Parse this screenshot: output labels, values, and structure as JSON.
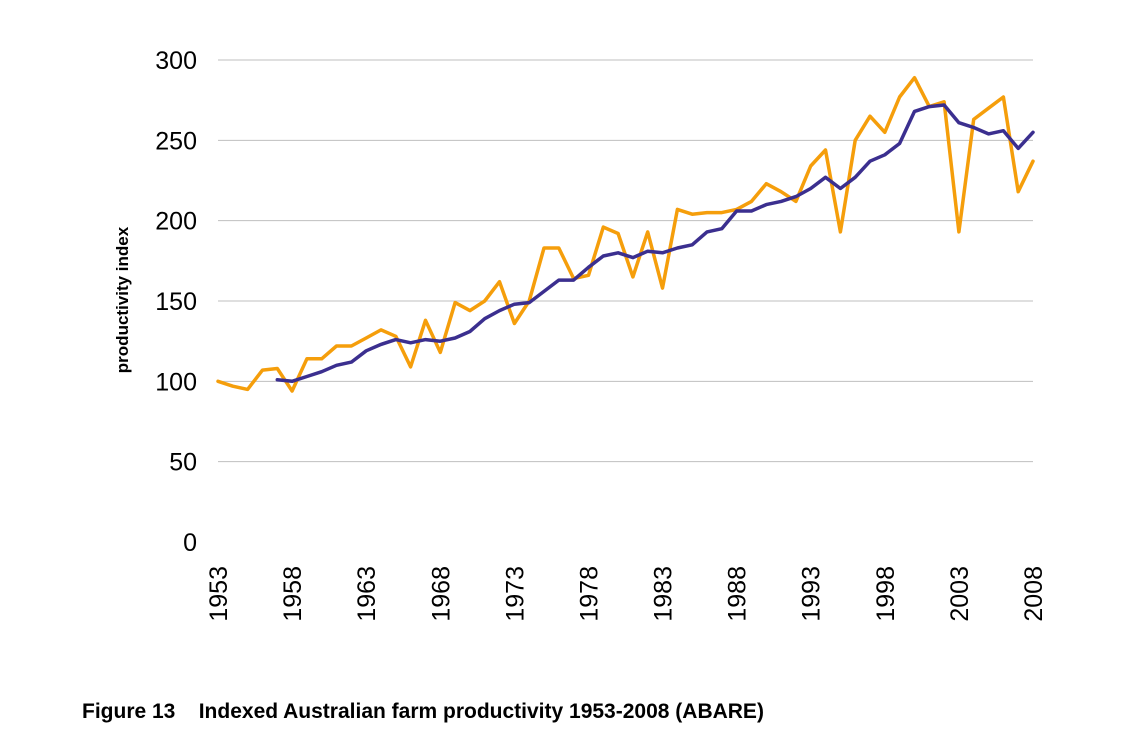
{
  "caption": {
    "figure_label": "Figure 13",
    "title": "Indexed Australian farm productivity 1953-2008 (ABARE)"
  },
  "chart_data": {
    "type": "line",
    "title": "",
    "xlabel": "",
    "ylabel": "productivity index",
    "ylim": [
      0,
      300
    ],
    "xlim": [
      1953,
      2008
    ],
    "y_ticks": [
      0,
      50,
      100,
      150,
      200,
      250,
      300
    ],
    "x_ticks": [
      "1953",
      "1958",
      "1963",
      "1968",
      "1973",
      "1978",
      "1983",
      "1988",
      "1993",
      "1998",
      "2003",
      "2008"
    ],
    "x_tick_orientation": "vertical",
    "grid": "horizontal",
    "legend": "none",
    "series": [
      {
        "color": "#F59E0B",
        "x": [
          1953,
          1954,
          1955,
          1956,
          1957,
          1958,
          1959,
          1960,
          1961,
          1962,
          1963,
          1964,
          1965,
          1966,
          1967,
          1968,
          1969,
          1970,
          1971,
          1972,
          1973,
          1974,
          1975,
          1976,
          1977,
          1978,
          1979,
          1980,
          1981,
          1982,
          1983,
          1984,
          1985,
          1986,
          1987,
          1988,
          1989,
          1990,
          1991,
          1992,
          1993,
          1994,
          1995,
          1996,
          1997,
          1998,
          1999,
          2000,
          2001,
          2002,
          2003,
          2004,
          2005,
          2006,
          2007,
          2008
        ],
        "values": [
          100,
          97,
          95,
          107,
          108,
          94,
          114,
          114,
          122,
          122,
          127,
          132,
          128,
          109,
          138,
          118,
          149,
          144,
          150,
          162,
          136,
          150,
          183,
          183,
          164,
          166,
          196,
          192,
          165,
          193,
          158,
          207,
          204,
          205,
          205,
          207,
          212,
          223,
          218,
          212,
          234,
          244,
          193,
          250,
          265,
          255,
          277,
          289,
          271,
          274,
          193,
          263,
          270,
          277,
          218,
          237
        ]
      },
      {
        "color": "#3B2F8F",
        "x": [
          1957,
          1958,
          1959,
          1960,
          1961,
          1962,
          1963,
          1964,
          1965,
          1966,
          1967,
          1968,
          1969,
          1970,
          1971,
          1972,
          1973,
          1974,
          1975,
          1976,
          1977,
          1978,
          1979,
          1980,
          1981,
          1982,
          1983,
          1984,
          1985,
          1986,
          1987,
          1988,
          1989,
          1990,
          1991,
          1992,
          1993,
          1994,
          1995,
          1996,
          1997,
          1998,
          1999,
          2000,
          2001,
          2002,
          2003,
          2004,
          2005,
          2006,
          2007,
          2008
        ],
        "values": [
          101,
          100,
          103,
          106,
          110,
          112,
          119,
          123,
          126,
          124,
          126,
          125,
          127,
          131,
          139,
          144,
          148,
          149,
          156,
          163,
          163,
          171,
          178,
          180,
          177,
          181,
          180,
          183,
          185,
          193,
          195,
          206,
          206,
          210,
          212,
          215,
          220,
          227,
          220,
          227,
          237,
          241,
          248,
          268,
          271,
          272,
          261,
          258,
          254,
          256,
          245,
          255
        ]
      }
    ]
  }
}
